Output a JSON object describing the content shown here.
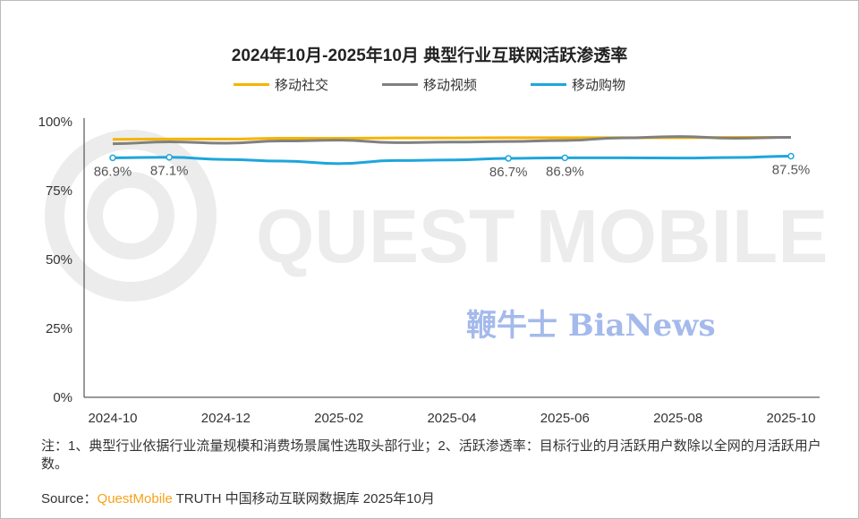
{
  "chart_data": {
    "type": "line",
    "title": "2024年10月-2025年10月 典型行业互联网活跃渗透率",
    "x": [
      "2024-10",
      "2024-11",
      "2024-12",
      "2025-01",
      "2025-02",
      "2025-03",
      "2025-04",
      "2025-05",
      "2025-06",
      "2025-07",
      "2025-08",
      "2025-09",
      "2025-10"
    ],
    "xticks": [
      "2024-10",
      "2024-12",
      "2025-02",
      "2025-04",
      "2025-06",
      "2025-08",
      "2025-10"
    ],
    "yticks": [
      "0%",
      "25%",
      "50%",
      "75%",
      "100%"
    ],
    "ylim": [
      0,
      100
    ],
    "legend_position": "top",
    "series": [
      {
        "name": "移动社交",
        "color": "#f5b400",
        "values": [
          93.6,
          93.7,
          93.7,
          94.0,
          94.0,
          94.1,
          94.1,
          94.2,
          94.2,
          94.2,
          94.2,
          94.3,
          94.3
        ]
      },
      {
        "name": "移动视频",
        "color": "#808080",
        "values": [
          92.0,
          92.7,
          92.2,
          93.0,
          93.3,
          92.4,
          92.6,
          92.8,
          93.2,
          94.1,
          94.6,
          94.0,
          94.3
        ]
      },
      {
        "name": "移动购物",
        "color": "#1ea6dc",
        "values": [
          86.9,
          87.1,
          86.3,
          85.7,
          84.8,
          85.9,
          86.1,
          86.7,
          86.9,
          86.9,
          86.8,
          87.0,
          87.5
        ]
      }
    ],
    "data_labels": [
      {
        "series": "移动购物",
        "index": 0,
        "text": "86.9%"
      },
      {
        "series": "移动购物",
        "index": 1,
        "text": "87.1%"
      },
      {
        "series": "移动购物",
        "index": 7,
        "text": "86.7%"
      },
      {
        "series": "移动购物",
        "index": 8,
        "text": "86.9%"
      },
      {
        "series": "移动购物",
        "index": 12,
        "text": "87.5%"
      }
    ]
  },
  "note": "注：1、典型行业依据行业流量规模和消费场景属性选取头部行业；2、活跃渗透率：目标行业的月活跃用户数除以全网的月活跃用户数。",
  "source": {
    "label": "Source：",
    "brand": "QuestMobile",
    "rest": " TRUTH 中国移动互联网数据库 2025年10月"
  },
  "watermark": "QUEST MOBILE",
  "watermark2": "鞭牛士 BiaNews"
}
